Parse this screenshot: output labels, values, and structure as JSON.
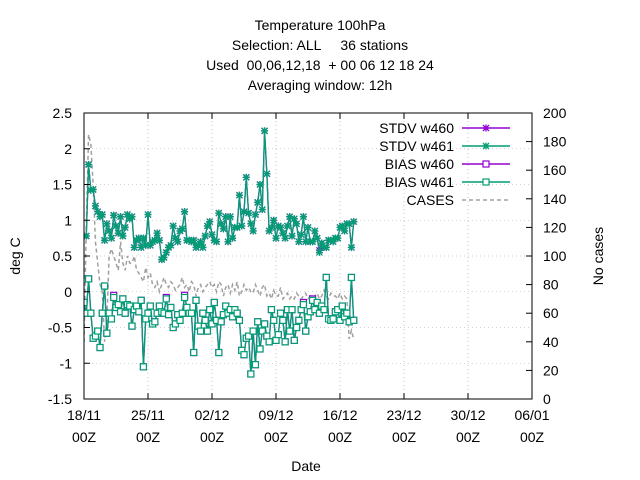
{
  "chart_data": {
    "type": "line",
    "title": [
      "Temperature 100hPa",
      "Selection: ALL     36 stations",
      "Used  00,06,12,18  + 00 06 12 18 24",
      "Averaging window: 12h"
    ],
    "xlabel": "Date",
    "ylabel": "deg C",
    "y2label": "No cases",
    "ylim": [
      -1.5,
      2.5
    ],
    "y2lim": [
      0,
      200
    ],
    "yticks": [
      "-1.5",
      "-1",
      "-0.5",
      "0",
      "0.5",
      "1",
      "1.5",
      "2",
      "2.5"
    ],
    "y2ticks": [
      "0",
      "20",
      "40",
      "60",
      "80",
      "100",
      "120",
      "140",
      "160",
      "180",
      "200"
    ],
    "xticks": [
      {
        "d": "18/11",
        "h": "00Z"
      },
      {
        "d": "25/11",
        "h": "00Z"
      },
      {
        "d": "02/12",
        "h": "00Z"
      },
      {
        "d": "09/12",
        "h": "00Z"
      },
      {
        "d": "16/12",
        "h": "00Z"
      },
      {
        "d": "23/12",
        "h": "00Z"
      },
      {
        "d": "30/12",
        "h": "00Z"
      },
      {
        "d": "06/01",
        "h": "00Z"
      }
    ],
    "legend_position": "top-right",
    "legend": [
      "STDV w460",
      "STDV w461",
      "BIAS w460",
      "BIAS w461",
      "CASES"
    ],
    "colors": {
      "w460": "#9400d3",
      "w461": "#009e73",
      "cases": "#a0a0a0"
    },
    "series": [
      {
        "name": "STDV w460",
        "values": [
          0.78,
          0.78,
          1.78,
          1.42,
          1.43,
          1.2,
          1.12,
          1.05,
          1.08,
          0.72,
          0.95,
          0.85,
          0.75,
          1.07,
          0.92,
          0.82,
          1.05,
          0.78,
          0.9,
          1.08,
          1.02,
          1.05,
          0.62,
          0.72,
          0.75,
          0.62,
          0.75,
          0.65,
          1.08,
          0.65,
          0.7,
          0.72,
          0.82,
          0.72,
          0.45,
          0.48,
          0.55,
          0.62,
          0.65,
          0.92,
          0.75,
          0.7,
          0.85,
          0.88,
          1.12,
          0.72,
          0.72,
          0.7,
          0.72,
          0.62,
          0.65,
          0.7,
          0.62,
          0.78,
          0.92,
          0.98,
          0.8,
          0.72,
          0.7,
          1.1,
          0.95,
          0.88,
          1.05,
          0.7,
          1.05,
          0.75,
          0.9,
          0.9,
          1.35,
          0.92,
          1.12,
          1.6,
          1.1,
          0.95,
          0.85,
          1.08,
          1.25,
          1.5,
          1.15,
          2.25,
          1.65,
          0.85,
          0.9,
          1.0,
          0.75,
          0.92,
          0.9,
          0.82,
          0.75,
          0.92,
          1.05,
          0.78,
          1.02,
          0.95,
          0.7,
          0.8,
          1.05,
          0.7,
          0.9,
          0.7,
          0.7,
          0.85,
          0.75,
          0.58,
          0.68,
          0.62,
          0.62,
          0.72,
          0.72,
          0.7,
          0.75,
          0.75,
          0.9,
          0.92,
          0.85,
          0.95,
          0.95,
          0.62,
          0.98
        ]
      },
      {
        "name": "STDV w461",
        "values": [
          0.78,
          0.78,
          1.78,
          1.42,
          1.43,
          1.2,
          1.12,
          1.05,
          1.08,
          0.72,
          0.95,
          0.85,
          0.75,
          1.07,
          0.92,
          0.82,
          1.05,
          0.78,
          0.9,
          1.08,
          1.02,
          1.05,
          0.62,
          0.72,
          0.75,
          0.62,
          0.75,
          0.65,
          1.08,
          0.65,
          0.7,
          0.72,
          0.82,
          0.72,
          0.45,
          0.48,
          0.55,
          0.62,
          0.65,
          0.92,
          0.75,
          0.7,
          0.85,
          0.88,
          1.12,
          0.72,
          0.72,
          0.7,
          0.72,
          0.62,
          0.65,
          0.7,
          0.62,
          0.78,
          0.92,
          0.98,
          0.8,
          0.72,
          0.7,
          1.1,
          0.95,
          0.88,
          1.05,
          0.7,
          1.05,
          0.75,
          0.9,
          0.9,
          1.35,
          0.92,
          1.12,
          1.6,
          1.1,
          0.95,
          0.85,
          1.08,
          1.25,
          1.5,
          1.15,
          2.25,
          1.65,
          0.85,
          0.9,
          1.0,
          0.75,
          0.92,
          0.9,
          0.82,
          0.75,
          0.92,
          1.05,
          0.78,
          1.02,
          0.95,
          0.7,
          0.8,
          1.05,
          0.7,
          0.9,
          0.7,
          0.7,
          0.85,
          0.75,
          0.55,
          0.68,
          0.62,
          0.62,
          0.72,
          0.72,
          0.7,
          0.75,
          0.75,
          0.9,
          0.92,
          0.85,
          0.95,
          0.95,
          0.62,
          0.98
        ]
      },
      {
        "name": "BIAS w460",
        "values": [
          -0.15,
          -0.3,
          0.18,
          -0.3,
          -0.65,
          -0.62,
          -0.55,
          -0.78,
          -0.3,
          0.08,
          -0.58,
          -0.3,
          -0.38,
          -0.05,
          -0.22,
          -0.18,
          -0.28,
          -0.1,
          -0.3,
          -0.18,
          -0.2,
          -0.48,
          -0.25,
          -0.2,
          -0.28,
          -0.12,
          -1.05,
          -0.38,
          -0.3,
          -0.2,
          -0.45,
          -0.42,
          -0.3,
          -0.2,
          -0.28,
          -0.3,
          -0.08,
          -0.32,
          -0.22,
          -0.5,
          -0.45,
          -0.32,
          -0.4,
          -0.3,
          -0.05,
          -0.22,
          -0.3,
          -0.3,
          -0.85,
          -0.12,
          -0.48,
          -0.55,
          -0.3,
          -0.4,
          -0.55,
          -0.25,
          -0.45,
          -0.15,
          -0.4,
          -0.85,
          -0.42,
          -0.32,
          -0.2,
          -0.3,
          -0.25,
          -0.35,
          -0.25,
          -0.3,
          -0.4,
          -0.82,
          -0.88,
          -0.65,
          -0.62,
          -1.15,
          -0.55,
          -1.02,
          -0.42,
          -0.8,
          -0.55,
          -0.45,
          -0.62,
          -0.7,
          -0.25,
          -0.4,
          -0.68,
          -0.6,
          -0.3,
          -0.4,
          -0.7,
          -0.25,
          -0.55,
          -0.25,
          -0.68,
          -0.5,
          -0.4,
          -0.25,
          -0.15,
          -0.55,
          -0.35,
          -0.28,
          -0.1,
          -0.25,
          -0.15,
          -0.3,
          -0.2,
          -0.25,
          0.2,
          -0.38,
          -0.4,
          -0.38,
          -0.28,
          -0.25,
          -0.4,
          -0.2,
          -0.35,
          -0.3,
          -0.42,
          0.2,
          -0.4
        ]
      },
      {
        "name": "BIAS w461",
        "values": [
          -0.15,
          -0.3,
          0.18,
          -0.3,
          -0.65,
          -0.62,
          -0.55,
          -0.78,
          -0.3,
          0.08,
          -0.58,
          -0.3,
          -0.38,
          -0.08,
          -0.22,
          -0.18,
          -0.28,
          -0.1,
          -0.3,
          -0.18,
          -0.2,
          -0.48,
          -0.25,
          -0.2,
          -0.28,
          -0.12,
          -1.05,
          -0.38,
          -0.3,
          -0.2,
          -0.45,
          -0.42,
          -0.3,
          -0.2,
          -0.28,
          -0.3,
          -0.1,
          -0.32,
          -0.22,
          -0.5,
          -0.45,
          -0.32,
          -0.4,
          -0.3,
          -0.08,
          -0.22,
          -0.3,
          -0.3,
          -0.85,
          -0.12,
          -0.48,
          -0.55,
          -0.3,
          -0.4,
          -0.55,
          -0.25,
          -0.45,
          -0.15,
          -0.4,
          -0.85,
          -0.42,
          -0.32,
          -0.2,
          -0.3,
          -0.25,
          -0.35,
          -0.25,
          -0.3,
          -0.4,
          -0.82,
          -0.88,
          -0.65,
          -0.62,
          -1.15,
          -0.55,
          -1.02,
          -0.42,
          -0.8,
          -0.55,
          -0.45,
          -0.62,
          -0.7,
          -0.25,
          -0.4,
          -0.68,
          -0.6,
          -0.3,
          -0.4,
          -0.7,
          -0.25,
          -0.55,
          -0.25,
          -0.68,
          -0.5,
          -0.4,
          -0.25,
          -0.18,
          -0.55,
          -0.35,
          -0.28,
          -0.12,
          -0.25,
          -0.15,
          -0.3,
          -0.2,
          -0.25,
          0.2,
          -0.38,
          -0.4,
          -0.38,
          -0.28,
          -0.25,
          -0.4,
          -0.2,
          -0.35,
          -0.3,
          -0.42,
          0.2,
          -0.4
        ]
      },
      {
        "name": "CASES",
        "axis": "y2",
        "values": [
          40,
          120,
          185,
          178,
          150,
          110,
          95,
          80,
          75,
          40,
          55,
          100,
          105,
          100,
          95,
          90,
          110,
          95,
          90,
          100,
          95,
          95,
          100,
          90,
          88,
          85,
          82,
          92,
          85,
          88,
          80,
          78,
          82,
          75,
          80,
          85,
          80,
          78,
          82,
          80,
          76,
          78,
          80,
          85,
          78,
          80,
          75,
          82,
          80,
          72,
          78,
          80,
          75,
          78,
          80,
          82,
          78,
          80,
          75,
          82,
          80,
          72,
          78,
          80,
          74,
          80,
          76,
          82,
          72,
          75,
          80,
          76,
          78,
          75,
          74,
          80,
          76,
          72,
          78,
          80,
          72,
          74,
          70,
          76,
          72,
          72,
          78,
          70,
          72,
          74,
          70,
          72,
          70,
          74,
          72,
          70,
          72,
          74,
          70,
          72,
          68,
          72,
          74,
          70,
          72,
          76,
          72,
          70,
          74,
          72,
          72,
          70,
          74,
          70,
          72,
          70,
          42,
          48,
          42
        ]
      }
    ]
  }
}
